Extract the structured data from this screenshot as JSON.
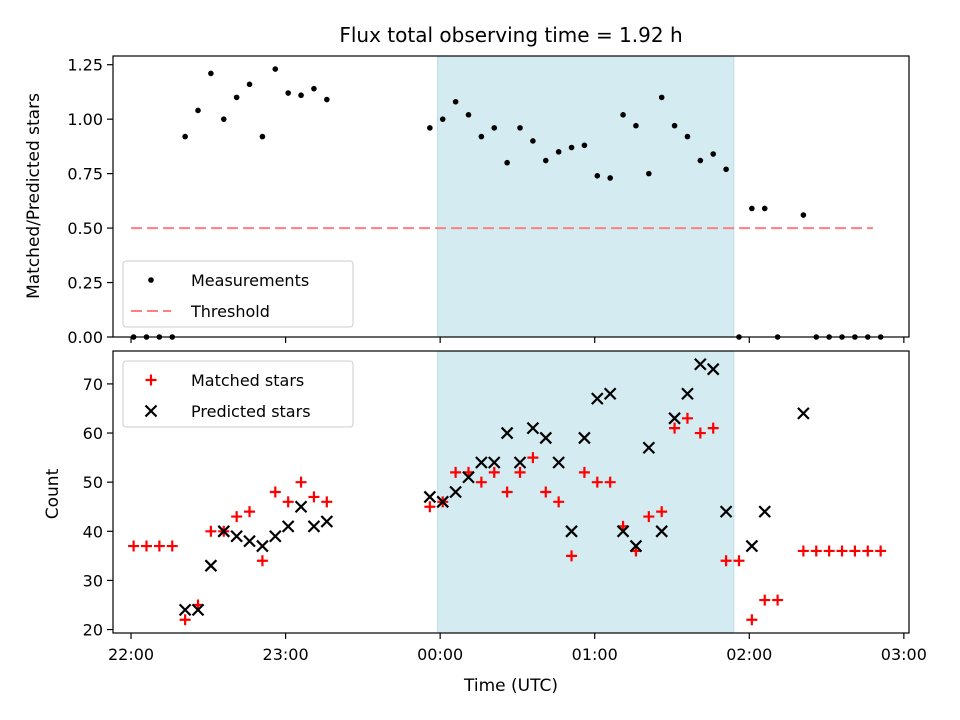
{
  "title": "Flux total observing time = 1.92 h",
  "colors": {
    "shade": "#add8e6",
    "threshold": "#ff7f7f",
    "matched": "#ff0000",
    "predicted": "#000000",
    "measurement": "#000000"
  },
  "chart_data": [
    {
      "type": "scatter",
      "panel": "top",
      "ylabel": "Matched/Predicted stars",
      "ylim": [
        0,
        1.29
      ],
      "yticks": [
        0,
        0.25,
        0.5,
        0.75,
        1.0,
        1.25
      ],
      "ytick_labels": [
        "0.00",
        "0.25",
        "0.50",
        "0.75",
        "1.00",
        "1.25"
      ],
      "xlim": [
        "21:53",
        "03:02"
      ],
      "shaded_span": [
        "23:59",
        "01:54"
      ],
      "legend": {
        "placement": "lower-left",
        "entries": [
          "Measurements",
          "Threshold"
        ]
      },
      "threshold": {
        "name": "Threshold",
        "y": 0.5,
        "x": [
          "22:00",
          "02:48"
        ]
      },
      "series": [
        {
          "name": "Measurements",
          "points": [
            [
              "22:01",
              0
            ],
            [
              "22:06",
              0
            ],
            [
              "22:11",
              0
            ],
            [
              "22:16",
              0
            ],
            [
              "22:21",
              0.92
            ],
            [
              "22:26",
              1.04
            ],
            [
              "22:31",
              1.21
            ],
            [
              "22:36",
              1.0
            ],
            [
              "22:41",
              1.1
            ],
            [
              "22:46",
              1.16
            ],
            [
              "22:51",
              0.92
            ],
            [
              "22:56",
              1.23
            ],
            [
              "23:01",
              1.12
            ],
            [
              "23:06",
              1.11
            ],
            [
              "23:11",
              1.14
            ],
            [
              "23:16",
              1.09
            ],
            [
              "23:56",
              0.96
            ],
            [
              "00:01",
              1.0
            ],
            [
              "00:06",
              1.08
            ],
            [
              "00:11",
              1.02
            ],
            [
              "00:16",
              0.92
            ],
            [
              "00:21",
              0.96
            ],
            [
              "00:26",
              0.8
            ],
            [
              "00:31",
              0.96
            ],
            [
              "00:36",
              0.9
            ],
            [
              "00:41",
              0.81
            ],
            [
              "00:46",
              0.85
            ],
            [
              "00:51",
              0.87
            ],
            [
              "00:56",
              0.88
            ],
            [
              "01:01",
              0.74
            ],
            [
              "01:06",
              0.73
            ],
            [
              "01:11",
              1.02
            ],
            [
              "01:16",
              0.97
            ],
            [
              "01:21",
              0.75
            ],
            [
              "01:26",
              1.1
            ],
            [
              "01:31",
              0.97
            ],
            [
              "01:36",
              0.92
            ],
            [
              "01:41",
              0.81
            ],
            [
              "01:46",
              0.84
            ],
            [
              "01:51",
              0.77
            ],
            [
              "01:56",
              0
            ],
            [
              "02:01",
              0.59
            ],
            [
              "02:06",
              0.59
            ],
            [
              "02:11",
              0
            ],
            [
              "02:21",
              0.56
            ],
            [
              "02:26",
              0
            ],
            [
              "02:31",
              0
            ],
            [
              "02:36",
              0
            ],
            [
              "02:41",
              0
            ],
            [
              "02:46",
              0
            ],
            [
              "02:51",
              0
            ]
          ]
        }
      ]
    },
    {
      "type": "scatter",
      "panel": "bottom",
      "xlabel": "Time (UTC)",
      "ylabel": "Count",
      "ylim": [
        19.3,
        76.7
      ],
      "yticks": [
        20,
        30,
        40,
        50,
        60,
        70
      ],
      "ytick_labels": [
        "20",
        "30",
        "40",
        "50",
        "60",
        "70"
      ],
      "xlim": [
        "21:53",
        "03:02"
      ],
      "xticks": [
        "22:00",
        "23:00",
        "00:00",
        "01:00",
        "02:00",
        "03:00"
      ],
      "xtick_labels": [
        "22:00",
        "23:00",
        "00:00",
        "01:00",
        "02:00",
        "03:00"
      ],
      "shaded_span": [
        "23:59",
        "01:54"
      ],
      "legend": {
        "placement": "upper-left",
        "entries": [
          "Matched stars",
          "Predicted stars"
        ]
      },
      "series": [
        {
          "name": "Matched stars",
          "marker": "plus",
          "points": [
            [
              "22:01",
              37
            ],
            [
              "22:06",
              37
            ],
            [
              "22:11",
              37
            ],
            [
              "22:16",
              37
            ],
            [
              "22:21",
              22
            ],
            [
              "22:26",
              25
            ],
            [
              "22:31",
              40
            ],
            [
              "22:36",
              40
            ],
            [
              "22:41",
              43
            ],
            [
              "22:46",
              44
            ],
            [
              "22:51",
              34
            ],
            [
              "22:56",
              48
            ],
            [
              "23:01",
              46
            ],
            [
              "23:06",
              50
            ],
            [
              "23:11",
              47
            ],
            [
              "23:16",
              46
            ],
            [
              "23:56",
              45
            ],
            [
              "00:01",
              46
            ],
            [
              "00:06",
              52
            ],
            [
              "00:11",
              52
            ],
            [
              "00:16",
              50
            ],
            [
              "00:21",
              52
            ],
            [
              "00:26",
              48
            ],
            [
              "00:31",
              52
            ],
            [
              "00:36",
              55
            ],
            [
              "00:41",
              48
            ],
            [
              "00:46",
              46
            ],
            [
              "00:51",
              35
            ],
            [
              "00:56",
              52
            ],
            [
              "01:01",
              50
            ],
            [
              "01:06",
              50
            ],
            [
              "01:11",
              41
            ],
            [
              "01:16",
              36
            ],
            [
              "01:21",
              43
            ],
            [
              "01:26",
              44
            ],
            [
              "01:31",
              61
            ],
            [
              "01:36",
              63
            ],
            [
              "01:41",
              60
            ],
            [
              "01:46",
              61
            ],
            [
              "01:51",
              34
            ],
            [
              "01:56",
              34
            ],
            [
              "02:01",
              22
            ],
            [
              "02:06",
              26
            ],
            [
              "02:11",
              26
            ],
            [
              "02:21",
              36
            ],
            [
              "02:26",
              36
            ],
            [
              "02:31",
              36
            ],
            [
              "02:36",
              36
            ],
            [
              "02:41",
              36
            ],
            [
              "02:46",
              36
            ],
            [
              "02:51",
              36
            ]
          ]
        },
        {
          "name": "Predicted stars",
          "marker": "x",
          "points": [
            [
              "22:21",
              24
            ],
            [
              "22:26",
              24
            ],
            [
              "22:31",
              33
            ],
            [
              "22:36",
              40
            ],
            [
              "22:41",
              39
            ],
            [
              "22:46",
              38
            ],
            [
              "22:51",
              37
            ],
            [
              "22:56",
              39
            ],
            [
              "23:01",
              41
            ],
            [
              "23:06",
              45
            ],
            [
              "23:11",
              41
            ],
            [
              "23:16",
              42
            ],
            [
              "23:56",
              47
            ],
            [
              "00:01",
              46
            ],
            [
              "00:06",
              48
            ],
            [
              "00:11",
              51
            ],
            [
              "00:16",
              54
            ],
            [
              "00:21",
              54
            ],
            [
              "00:26",
              60
            ],
            [
              "00:31",
              54
            ],
            [
              "00:36",
              61
            ],
            [
              "00:41",
              59
            ],
            [
              "00:46",
              54
            ],
            [
              "00:51",
              40
            ],
            [
              "00:56",
              59
            ],
            [
              "01:01",
              67
            ],
            [
              "01:06",
              68
            ],
            [
              "01:11",
              40
            ],
            [
              "01:16",
              37
            ],
            [
              "01:21",
              57
            ],
            [
              "01:26",
              40
            ],
            [
              "01:31",
              63
            ],
            [
              "01:36",
              68
            ],
            [
              "01:41",
              74
            ],
            [
              "01:46",
              73
            ],
            [
              "01:51",
              44
            ],
            [
              "02:01",
              37
            ],
            [
              "02:06",
              44
            ],
            [
              "02:21",
              64
            ]
          ]
        }
      ]
    }
  ]
}
